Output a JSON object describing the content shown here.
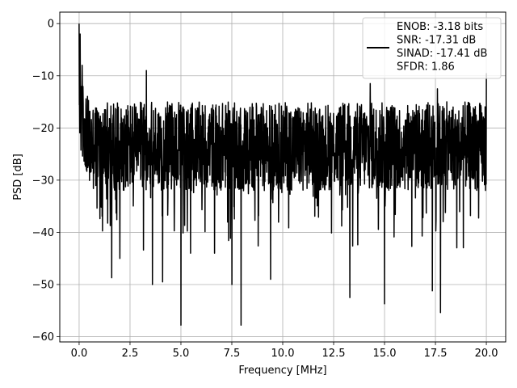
{
  "chart_data": {
    "type": "line",
    "xlabel": "Frequency [MHz]",
    "ylabel": "PSD [dB]",
    "xlim": [
      -0.95,
      20.95
    ],
    "ylim": [
      -61,
      2.2
    ],
    "xticks": [
      0.0,
      2.5,
      5.0,
      7.5,
      10.0,
      12.5,
      15.0,
      17.5,
      20.0
    ],
    "xtick_labels": [
      "0.0",
      "2.5",
      "5.0",
      "7.5",
      "10.0",
      "12.5",
      "15.0",
      "17.5",
      "20.0"
    ],
    "yticks": [
      0,
      -10,
      -20,
      -30,
      -40,
      -50,
      -60
    ],
    "ytick_labels": [
      "0",
      "−10",
      "−20",
      "−30",
      "−40",
      "−50",
      "−60"
    ],
    "grid": true,
    "legend_placement": "top-right",
    "series_color": "#000000",
    "series": [
      {
        "legend_lines": [
          "ENOB: -3.18 bits",
          "SNR: -17.31 dB",
          "SINAD: -17.41 dB",
          "SFDR: 1.86"
        ],
        "x_start": 0.0,
        "x_end": 20.0,
        "approx_points": 2000,
        "peaks": [
          [
            0.0,
            0.0
          ],
          [
            0.05,
            -2.0
          ],
          [
            0.15,
            -8.0
          ],
          [
            3.3,
            -9.0
          ],
          [
            20.0,
            -9.5
          ],
          [
            14.3,
            -11.5
          ],
          [
            17.6,
            -12.5
          ]
        ],
        "dips": [
          [
            1.6,
            -48.7
          ],
          [
            2.0,
            -45.0
          ],
          [
            3.6,
            -50.0
          ],
          [
            4.1,
            -49.5
          ],
          [
            5.0,
            -57.8
          ],
          [
            7.5,
            -50.0
          ],
          [
            7.95,
            -57.8
          ],
          [
            9.4,
            -49.0
          ],
          [
            13.3,
            -52.5
          ],
          [
            15.0,
            -53.7
          ],
          [
            17.35,
            -51.2
          ],
          [
            17.75,
            -55.4
          ]
        ]
      }
    ]
  }
}
